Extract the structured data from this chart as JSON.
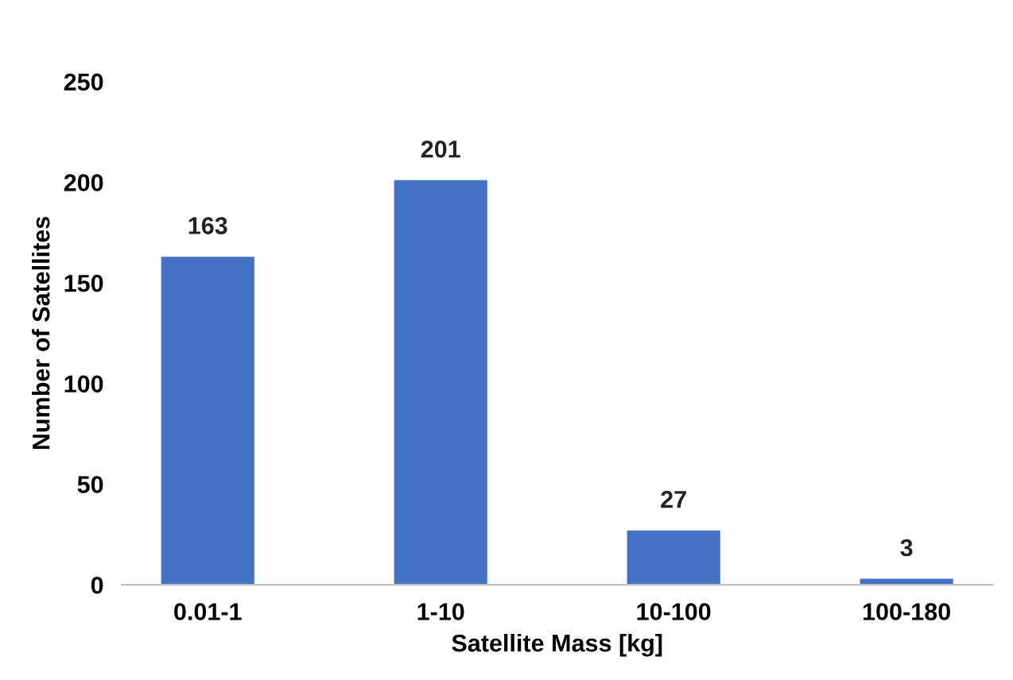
{
  "chart_data": {
    "type": "bar",
    "xlabel": "Satellite Mass [kg]",
    "ylabel": "Number of Satellites",
    "categories": [
      "0.01-1",
      "1-10",
      "10-100",
      "100-180"
    ],
    "values": [
      163,
      201,
      27,
      3
    ],
    "color": "#4472c4",
    "ylim": [
      0,
      250
    ],
    "yticks": [
      0,
      50,
      100,
      150,
      200,
      250
    ],
    "grid": false,
    "data_labels": true
  }
}
